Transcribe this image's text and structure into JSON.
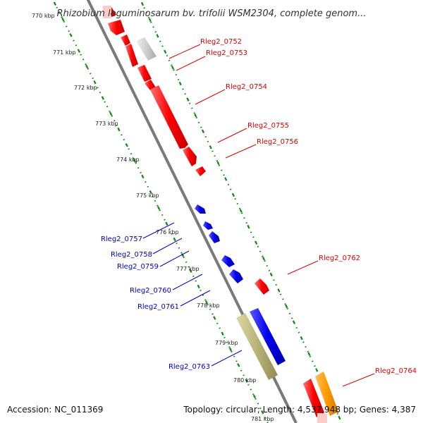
{
  "title": "Rhizobium leguminosarum bv. trifolii WSM2304, complete genom...",
  "footer": {
    "accession": "Accession: NC_011369",
    "summary": "Topology: circular; Length: 4,537,948 bp; Genes: 4,387"
  },
  "colors": {
    "forward": "#ff0000",
    "reverse": "#0000ee",
    "pseudo": "#c8c8c8",
    "rna": "#b8b478",
    "other": "#ff9a00",
    "axis": "#808080",
    "tick": "#118811"
  },
  "ticks": [
    "770 kbp",
    "771 kbp",
    "772 kbp",
    "773 kbp",
    "774 kbp",
    "775 kbp",
    "776 kbp",
    "777 kbp",
    "778 kbp",
    "779 kbp",
    "780 kbp",
    "781 kbp"
  ],
  "labels": {
    "forward": [
      "Rleg2_0752",
      "Rleg2_0753",
      "Rleg2_0754",
      "Rleg2_0755",
      "Rleg2_0756",
      "Rleg2_0762",
      "Rleg2_0764"
    ],
    "reverse": [
      "Rleg2_0757",
      "Rleg2_0758",
      "Rleg2_0759",
      "Rleg2_0760",
      "Rleg2_0761",
      "Rleg2_0763"
    ]
  }
}
